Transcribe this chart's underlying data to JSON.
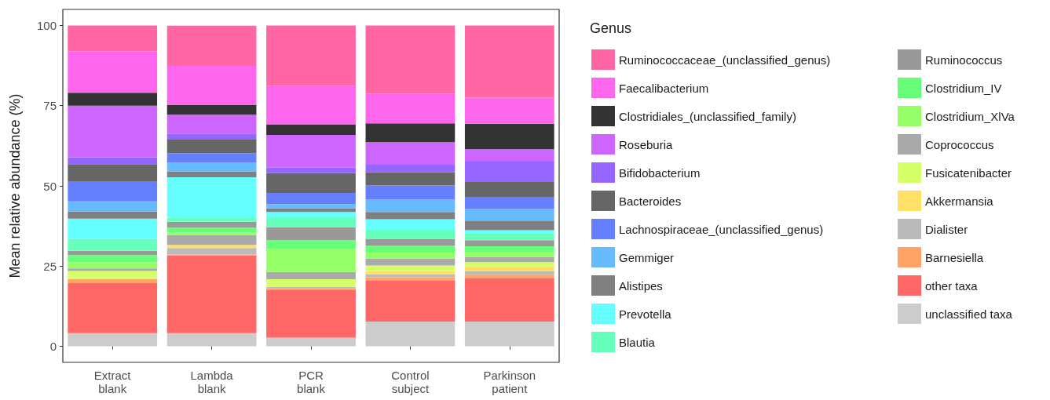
{
  "chart_data": {
    "type": "bar",
    "stacked": true,
    "ylabel": "Mean relative abundance (%)",
    "legend_title": "Genus",
    "legend": "right",
    "categories": [
      "Extract\nblank",
      "Lambda\nblank",
      "PCR\nblank",
      "Control\nsubject",
      "Parkinson\npatient"
    ],
    "ylim": [
      -5,
      105
    ],
    "yticks": [
      0,
      25,
      50,
      75,
      100
    ],
    "grid": false,
    "series": [
      {
        "name": "unclassified taxa",
        "color": "#cccccc",
        "values": [
          4.1,
          4.1,
          2.7,
          7.7,
          7.7
        ]
      },
      {
        "name": "other taxa",
        "color": "#ff6666",
        "values": [
          15.6,
          24.2,
          14.8,
          12.7,
          13.6
        ]
      },
      {
        "name": "Barnesiella",
        "color": "#ffa366",
        "values": [
          1.2,
          0.3,
          0.6,
          1.1,
          1.0
        ]
      },
      {
        "name": "Dialister",
        "color": "#bbbbbb",
        "values": [
          0,
          2.0,
          0.4,
          1.0,
          1.2
        ]
      },
      {
        "name": "Akkermansia",
        "color": "#ffe066",
        "values": [
          0.3,
          1.0,
          0,
          1.0,
          1.4
        ]
      },
      {
        "name": "Fusicatenibacter",
        "color": "#d4ff66",
        "values": [
          2.3,
          0,
          2.4,
          1.7,
          1.3
        ]
      },
      {
        "name": "Coprococcus",
        "color": "#aaaaaa",
        "values": [
          0.8,
          3.0,
          2.3,
          2.1,
          1.6
        ]
      },
      {
        "name": "Clostridium_XlVa",
        "color": "#94ff66",
        "values": [
          1.9,
          0.8,
          7.1,
          1.9,
          1.5
        ]
      },
      {
        "name": "Clostridium_IV",
        "color": "#66ff77",
        "values": [
          2.2,
          1.6,
          2.8,
          2.2,
          1.9
        ]
      },
      {
        "name": "Ruminococcus",
        "color": "#999999",
        "values": [
          1.4,
          1.8,
          4.0,
          2.1,
          1.9
        ]
      },
      {
        "name": "Blautia",
        "color": "#66ffbb",
        "values": [
          3.7,
          1.3,
          3.1,
          2.8,
          2.1
        ]
      },
      {
        "name": "Prevotella",
        "color": "#66ffff",
        "values": [
          6.3,
          12.6,
          1.7,
          3.3,
          1.0
        ]
      },
      {
        "name": "Alistipes",
        "color": "#808080",
        "values": [
          2.2,
          1.8,
          1.1,
          2.3,
          3.0
        ]
      },
      {
        "name": "Gemmiger",
        "color": "#66bbff",
        "values": [
          3.2,
          2.7,
          1.3,
          3.8,
          3.6
        ]
      },
      {
        "name": "Lachnospiraceae_(unclassified_genus)",
        "color": "#667fff",
        "values": [
          6.1,
          3.0,
          3.5,
          4.4,
          3.8
        ]
      },
      {
        "name": "Bacteroides",
        "color": "#666666",
        "values": [
          5.5,
          4.2,
          6.2,
          4.1,
          4.6
        ]
      },
      {
        "name": "Bifidobacterium",
        "color": "#9466ff",
        "values": [
          2.1,
          1.9,
          1.7,
          2.4,
          6.4
        ]
      },
      {
        "name": "Roseburia",
        "color": "#cc66ff",
        "values": [
          16.1,
          5.9,
          10.2,
          7.0,
          3.8
        ]
      },
      {
        "name": "Clostridiales_(unclassified_family)",
        "color": "#333333",
        "values": [
          4.0,
          3.0,
          3.3,
          5.9,
          8.0
        ]
      },
      {
        "name": "Faecalibacterium",
        "color": "#ff66ee",
        "values": [
          12.9,
          12.2,
          12.0,
          9.2,
          8.1
        ]
      },
      {
        "name": "Ruminococcaceae_(unclassified_genus)",
        "color": "#ff66a3",
        "values": [
          8.1,
          12.5,
          18.8,
          21.3,
          22.5
        ]
      }
    ]
  }
}
